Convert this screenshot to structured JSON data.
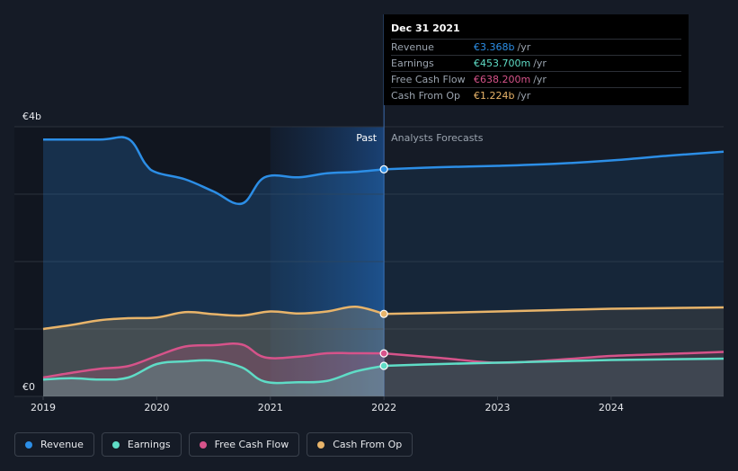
{
  "tooltip": {
    "date": "Dec 31 2021",
    "rows": [
      {
        "name": "Revenue",
        "value": "€3.368b",
        "unit": "/yr",
        "color": "#2c8ee6"
      },
      {
        "name": "Earnings",
        "value": "€453.700m",
        "unit": "/yr",
        "color": "#5fdcc6"
      },
      {
        "name": "Free Cash Flow",
        "value": "€638.200m",
        "unit": "/yr",
        "color": "#d6538a"
      },
      {
        "name": "Cash From Op",
        "value": "€1.224b",
        "unit": "/yr",
        "color": "#e8b46a"
      }
    ]
  },
  "legend": [
    {
      "label": "Revenue",
      "color": "#2c8ee6"
    },
    {
      "label": "Earnings",
      "color": "#5fdcc6"
    },
    {
      "label": "Free Cash Flow",
      "color": "#d6538a"
    },
    {
      "label": "Cash From Op",
      "color": "#e8b46a"
    }
  ],
  "chart_data": {
    "type": "area",
    "ylim": [
      0,
      4.0
    ],
    "xlim": [
      2019.0,
      2024.99
    ],
    "y_ticks": [
      {
        "value": 4.0,
        "label": "€4b"
      },
      {
        "value": 0,
        "label": "€0"
      }
    ],
    "x_ticks": [
      {
        "value": 2019,
        "label": "2019"
      },
      {
        "value": 2020,
        "label": "2020"
      },
      {
        "value": 2021,
        "label": "2021"
      },
      {
        "value": 2022,
        "label": "2022"
      },
      {
        "value": 2023,
        "label": "2023"
      },
      {
        "value": 2024,
        "label": "2024"
      }
    ],
    "past_label": "Past",
    "forecast_label": "Analysts Forecasts",
    "divider_x": 2022.0,
    "highlight_start": 2021.0,
    "series": [
      {
        "name": "Revenue",
        "color": "#2c8ee6",
        "past": [
          [
            2019.0,
            3.81
          ],
          [
            2019.5,
            3.81
          ],
          [
            2019.75,
            3.82
          ],
          [
            2019.9,
            3.45
          ],
          [
            2020.0,
            3.32
          ],
          [
            2020.25,
            3.22
          ],
          [
            2020.5,
            3.04
          ],
          [
            2020.75,
            2.86
          ],
          [
            2020.95,
            3.25
          ],
          [
            2021.25,
            3.25
          ],
          [
            2021.5,
            3.31
          ],
          [
            2021.75,
            3.33
          ],
          [
            2022.0,
            3.368
          ]
        ],
        "forecast": [
          [
            2022.0,
            3.368
          ],
          [
            2022.5,
            3.4
          ],
          [
            2023.0,
            3.42
          ],
          [
            2023.5,
            3.45
          ],
          [
            2024.0,
            3.5
          ],
          [
            2024.5,
            3.57
          ],
          [
            2024.99,
            3.63
          ]
        ]
      },
      {
        "name": "Cash From Op",
        "color": "#e8b46a",
        "past": [
          [
            2019.0,
            1.0
          ],
          [
            2019.25,
            1.06
          ],
          [
            2019.5,
            1.13
          ],
          [
            2019.75,
            1.16
          ],
          [
            2020.0,
            1.17
          ],
          [
            2020.25,
            1.25
          ],
          [
            2020.5,
            1.22
          ],
          [
            2020.75,
            1.2
          ],
          [
            2021.0,
            1.26
          ],
          [
            2021.25,
            1.23
          ],
          [
            2021.5,
            1.26
          ],
          [
            2021.75,
            1.33
          ],
          [
            2022.0,
            1.224
          ]
        ],
        "forecast": [
          [
            2022.0,
            1.224
          ],
          [
            2022.5,
            1.24
          ],
          [
            2023.0,
            1.26
          ],
          [
            2023.5,
            1.28
          ],
          [
            2024.0,
            1.3
          ],
          [
            2024.5,
            1.31
          ],
          [
            2024.99,
            1.32
          ]
        ]
      },
      {
        "name": "Free Cash Flow",
        "color": "#d6538a",
        "past": [
          [
            2019.0,
            0.28
          ],
          [
            2019.25,
            0.35
          ],
          [
            2019.5,
            0.41
          ],
          [
            2019.75,
            0.45
          ],
          [
            2020.0,
            0.6
          ],
          [
            2020.25,
            0.74
          ],
          [
            2020.5,
            0.76
          ],
          [
            2020.75,
            0.77
          ],
          [
            2020.95,
            0.58
          ],
          [
            2021.25,
            0.59
          ],
          [
            2021.5,
            0.64
          ],
          [
            2021.75,
            0.64
          ],
          [
            2022.0,
            0.638
          ]
        ],
        "forecast": [
          [
            2022.0,
            0.638
          ],
          [
            2022.5,
            0.57
          ],
          [
            2023.0,
            0.5
          ],
          [
            2023.5,
            0.54
          ],
          [
            2024.0,
            0.6
          ],
          [
            2024.5,
            0.63
          ],
          [
            2024.99,
            0.66
          ]
        ]
      },
      {
        "name": "Earnings",
        "color": "#5fdcc6",
        "past": [
          [
            2019.0,
            0.25
          ],
          [
            2019.25,
            0.27
          ],
          [
            2019.5,
            0.25
          ],
          [
            2019.75,
            0.28
          ],
          [
            2020.0,
            0.48
          ],
          [
            2020.25,
            0.52
          ],
          [
            2020.5,
            0.53
          ],
          [
            2020.75,
            0.43
          ],
          [
            2020.95,
            0.22
          ],
          [
            2021.25,
            0.21
          ],
          [
            2021.5,
            0.23
          ],
          [
            2021.75,
            0.37
          ],
          [
            2022.0,
            0.4537
          ]
        ],
        "forecast": [
          [
            2022.0,
            0.4537
          ],
          [
            2022.5,
            0.48
          ],
          [
            2023.0,
            0.5
          ],
          [
            2023.5,
            0.52
          ],
          [
            2024.0,
            0.54
          ],
          [
            2024.5,
            0.55
          ],
          [
            2024.99,
            0.56
          ]
        ]
      }
    ]
  }
}
